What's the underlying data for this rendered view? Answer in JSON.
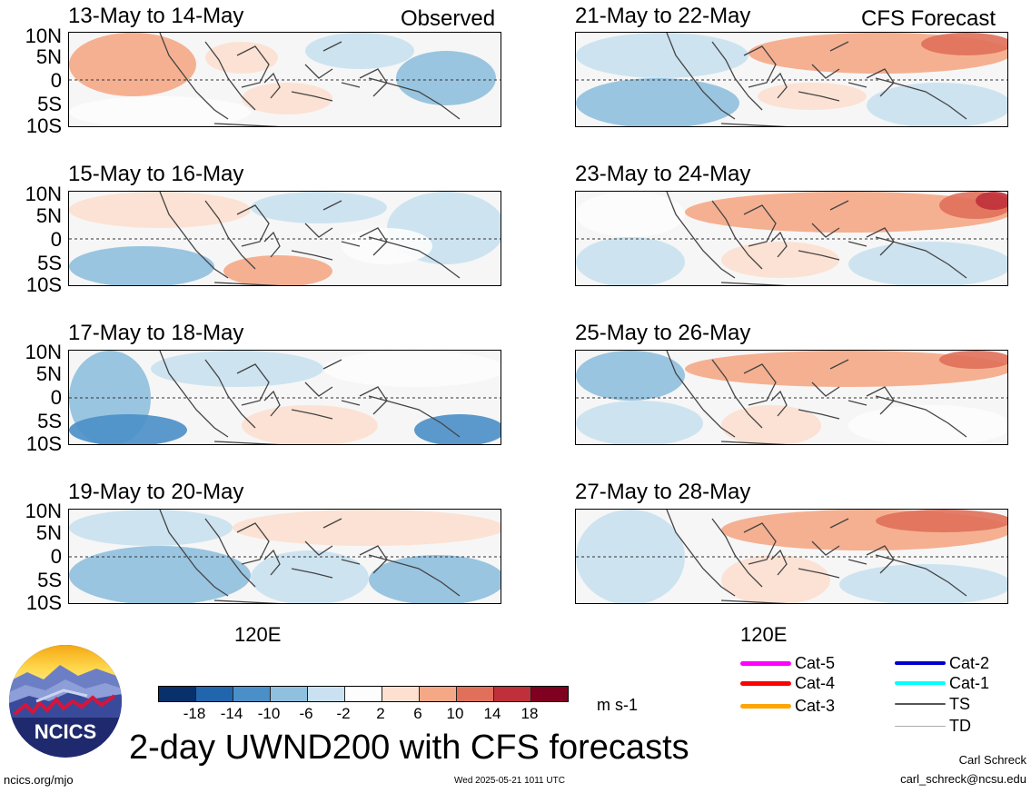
{
  "panels": [
    {
      "title": "13-May to 14-May",
      "tag": "Observed"
    },
    {
      "title": "15-May to 16-May",
      "tag": ""
    },
    {
      "title": "17-May to 18-May",
      "tag": ""
    },
    {
      "title": "19-May to 20-May",
      "tag": ""
    },
    {
      "title": "21-May to 22-May",
      "tag": "CFS Forecast"
    },
    {
      "title": "23-May to 24-May",
      "tag": ""
    },
    {
      "title": "25-May to 26-May",
      "tag": ""
    },
    {
      "title": "27-May to 28-May",
      "tag": ""
    }
  ],
  "lat_labels": [
    "10N",
    "5N",
    "0",
    "5S",
    "10S"
  ],
  "lon_label": "120E",
  "colorbar": {
    "colors": [
      "#08306b",
      "#2166ac",
      "#4a8fc8",
      "#8fc0de",
      "#c9e1f0",
      "#fdfdfd",
      "#fde0d0",
      "#f5a886",
      "#e0705a",
      "#c0303a",
      "#800020"
    ],
    "ticks": [
      "-18",
      "-14",
      "-10",
      "-6",
      "-2",
      "2",
      "6",
      "10",
      "14",
      "18"
    ],
    "units": "m s-1"
  },
  "legend": [
    {
      "label": "Cat-5",
      "color": "#ff00ff"
    },
    {
      "label": "Cat-4",
      "color": "#ff0000"
    },
    {
      "label": "Cat-3",
      "color": "#ffa500"
    },
    {
      "label": "Cat-2",
      "color": "#0000cd"
    },
    {
      "label": "Cat-1",
      "color": "#00ffff"
    },
    {
      "label": "TS",
      "color": "#555555"
    },
    {
      "label": "TD",
      "color": "#aaaaaa"
    }
  ],
  "main_title": "2-day UWND200 with CFS forecasts",
  "logo_text": "NCICS",
  "url": "ncics.org/mjo",
  "timestamp": "Wed 2025-05-21 1011 UTC",
  "author": "Carl Schreck",
  "email": "carl_schreck@ncsu.edu"
}
